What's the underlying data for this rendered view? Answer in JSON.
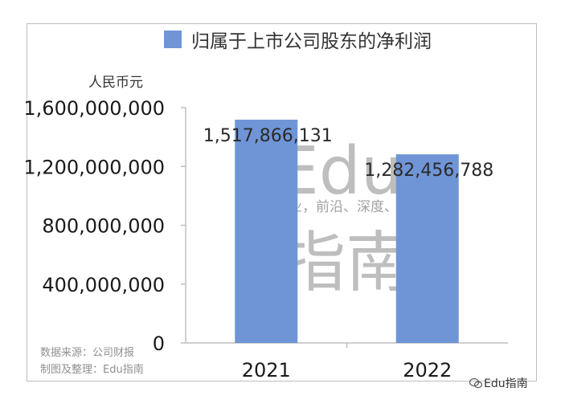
{
  "chart_data": {
    "type": "bar",
    "title": "归属于上市公司股东的净利润",
    "ylabel": "人民币元",
    "categories": [
      "2021",
      "2022"
    ],
    "series": [
      {
        "name": "归属于上市公司股东的净利润",
        "values": [
          1517866131,
          1282456788
        ],
        "data_labels": [
          "1,517,866,131",
          "1,282,456,788"
        ]
      }
    ],
    "ylim": [
      0,
      1600000000
    ],
    "y_ticks": [
      0,
      400000000,
      800000000,
      1200000000,
      1600000000
    ],
    "y_tick_labels": [
      "0",
      "400,000,000",
      "800,000,000",
      "1,200,000,000",
      "1,600,000,000"
    ],
    "grid": false,
    "legend_position": "top",
    "colors": {
      "bar": "#6f95d6",
      "axis": "#bfbfbf"
    }
  },
  "watermark": {
    "big1": "Edu",
    "big2": "指南",
    "small": "教育行业，前沿、深度、独家"
  },
  "source": {
    "line1": "数据来源：公司财报",
    "line2": "制图及整理：Edu指南"
  },
  "wechat": {
    "icon": "wechat-icon",
    "label": "Edu指南"
  }
}
